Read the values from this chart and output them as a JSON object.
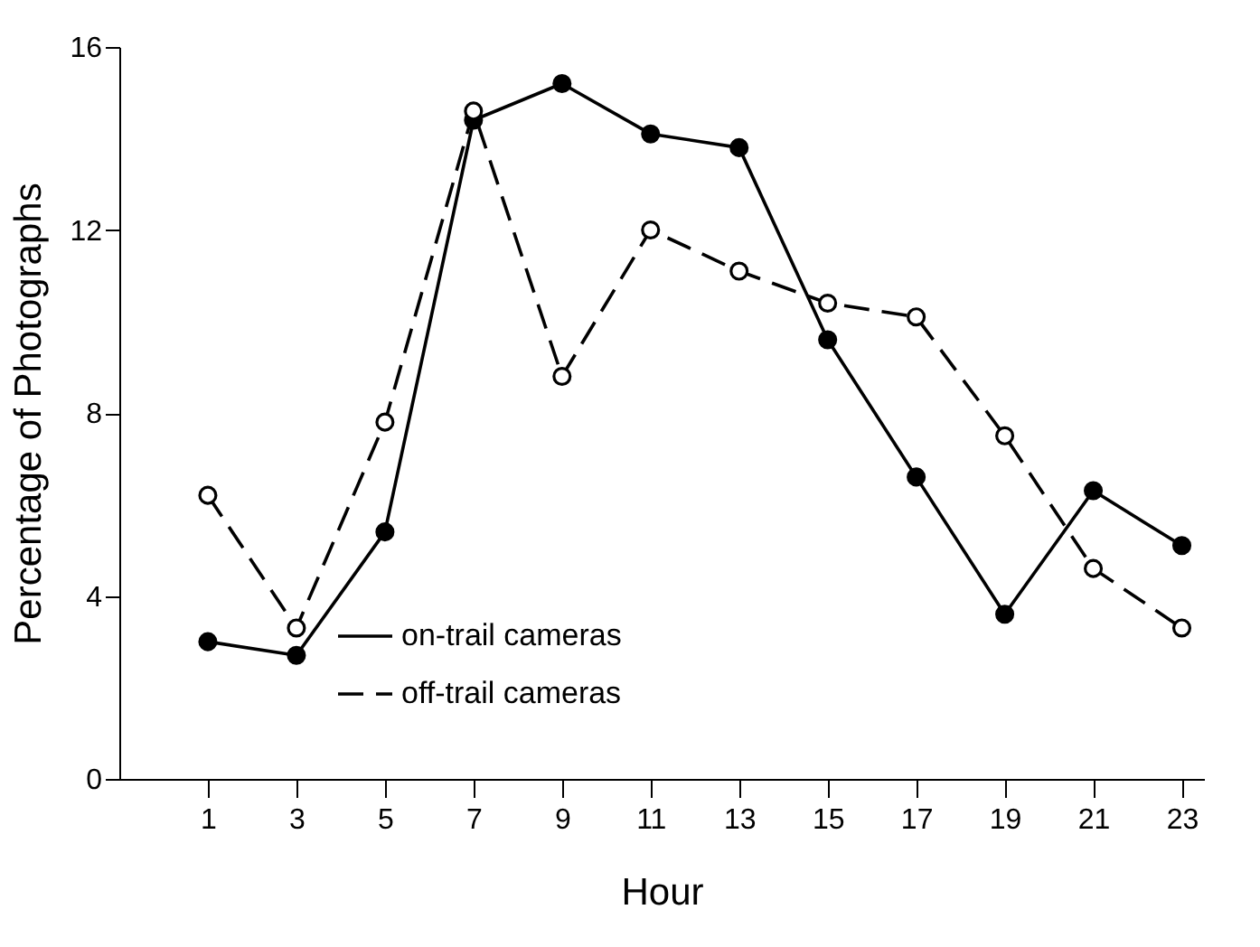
{
  "chart_data": {
    "type": "line",
    "xlabel": "Hour",
    "ylabel": "Percentage of Photographs",
    "x": [
      1,
      3,
      5,
      7,
      9,
      11,
      13,
      15,
      17,
      19,
      21,
      23
    ],
    "series": [
      {
        "name": "on-trail cameras",
        "color": "#000000",
        "line_style": "solid",
        "values": [
          3.0,
          2.7,
          5.4,
          14.4,
          15.2,
          14.1,
          13.8,
          9.6,
          6.6,
          3.6,
          6.3,
          5.1
        ]
      },
      {
        "name": "off-trail cameras",
        "color": "#000000",
        "line_style": "dashed",
        "values": [
          6.2,
          3.3,
          7.8,
          14.6,
          8.8,
          12.0,
          11.1,
          10.4,
          10.1,
          7.5,
          4.6,
          3.3
        ]
      }
    ],
    "xlim": [
      -1,
      23.5
    ],
    "xticks": [
      1,
      3,
      5,
      7,
      9,
      11,
      13,
      15,
      17,
      19,
      21,
      23
    ],
    "ylim": [
      0,
      16
    ],
    "yticks": [
      0,
      4,
      8,
      12,
      16
    ],
    "marker": "circle",
    "legend": "bottom left"
  }
}
